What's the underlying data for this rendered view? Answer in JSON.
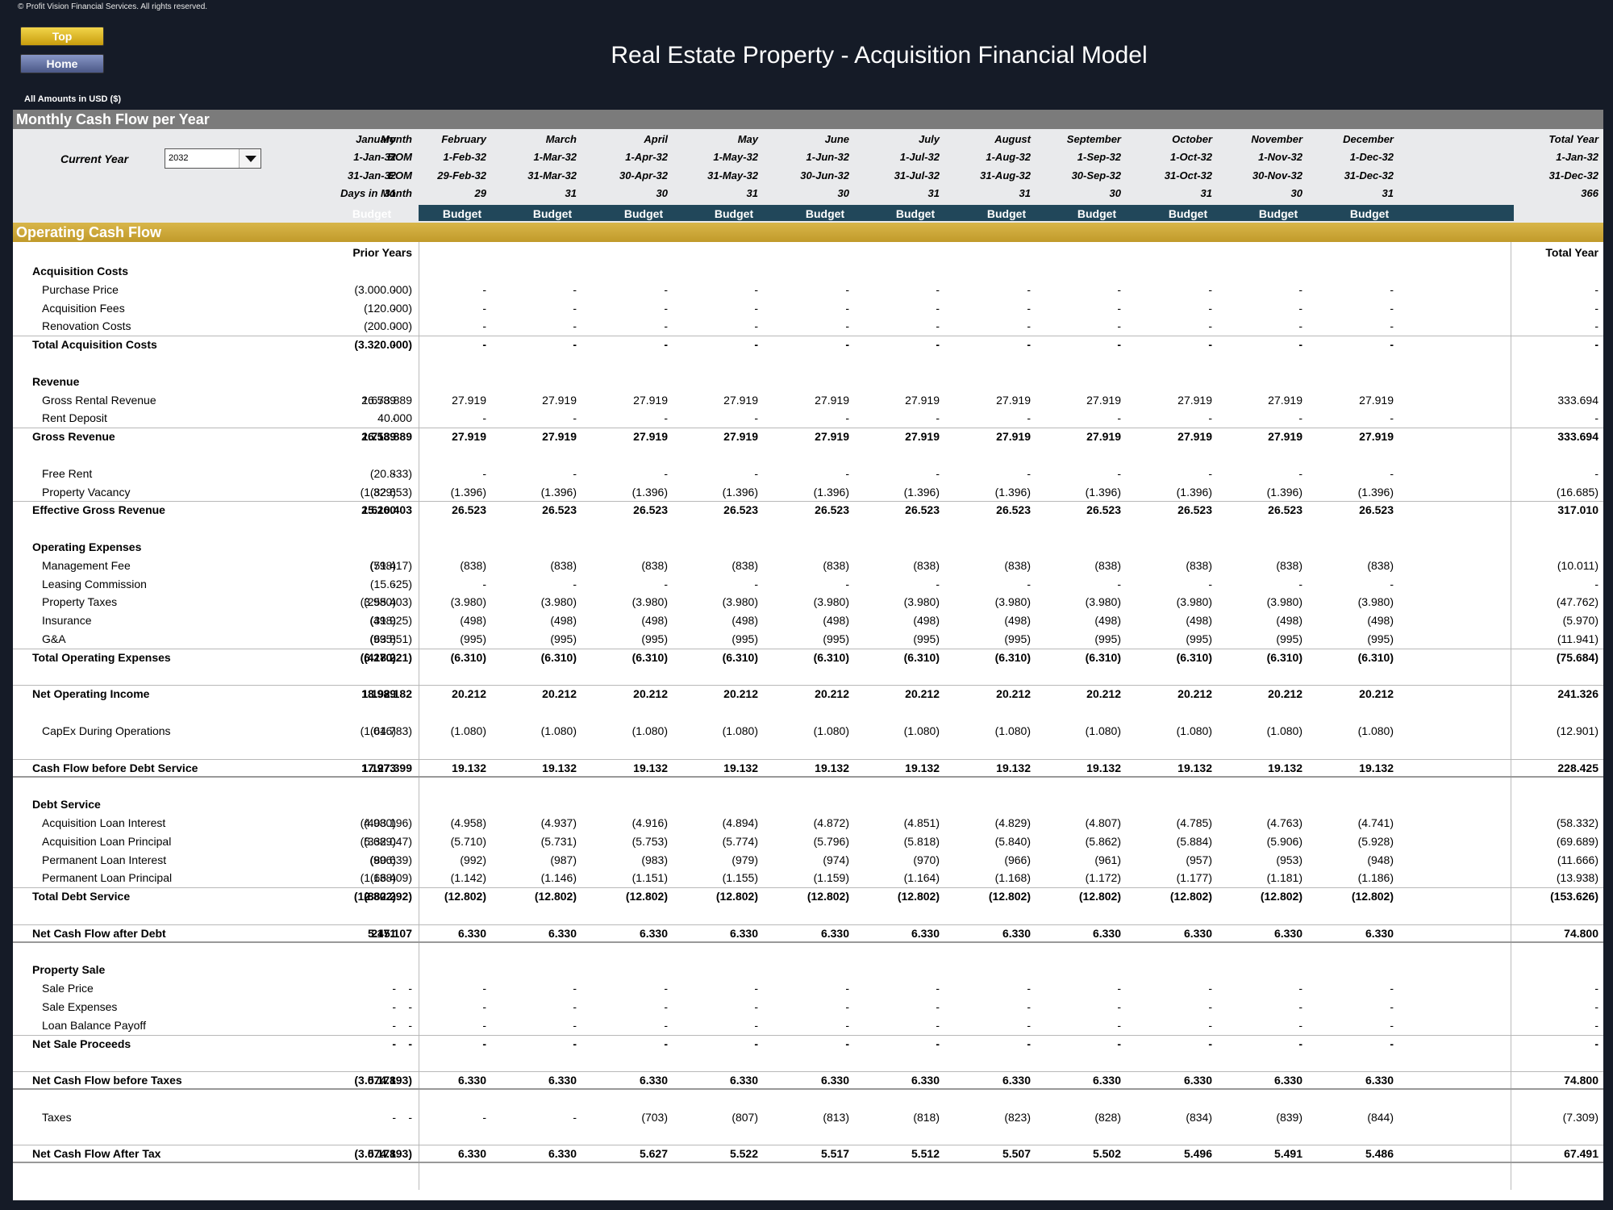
{
  "copyright": "© Profit Vision Financial Services. All rights reserved.",
  "nav": {
    "top_label": "Top",
    "home_label": "Home"
  },
  "title": "Real Estate Property - Acquisition Financial Model",
  "amounts_note": "All Amounts in  USD ($)",
  "section_title": "Monthly Cash Flow per Year",
  "current_year": {
    "label": "Current Year",
    "value": "2032"
  },
  "header_labels": {
    "month": "Month",
    "bom": "BOM",
    "eom": "EOM",
    "days": "Days in Month"
  },
  "months": [
    {
      "name": "January",
      "bom": "1-Jan-32",
      "eom": "31-Jan-32",
      "days": "31",
      "scenario": "Budget"
    },
    {
      "name": "February",
      "bom": "1-Feb-32",
      "eom": "29-Feb-32",
      "days": "29",
      "scenario": "Budget"
    },
    {
      "name": "March",
      "bom": "1-Mar-32",
      "eom": "31-Mar-32",
      "days": "31",
      "scenario": "Budget"
    },
    {
      "name": "April",
      "bom": "1-Apr-32",
      "eom": "30-Apr-32",
      "days": "30",
      "scenario": "Budget"
    },
    {
      "name": "May",
      "bom": "1-May-32",
      "eom": "31-May-32",
      "days": "31",
      "scenario": "Budget"
    },
    {
      "name": "June",
      "bom": "1-Jun-32",
      "eom": "30-Jun-32",
      "days": "30",
      "scenario": "Budget"
    },
    {
      "name": "July",
      "bom": "1-Jul-32",
      "eom": "31-Jul-32",
      "days": "31",
      "scenario": "Budget"
    },
    {
      "name": "August",
      "bom": "1-Aug-32",
      "eom": "31-Aug-32",
      "days": "31",
      "scenario": "Budget"
    },
    {
      "name": "September",
      "bom": "1-Sep-32",
      "eom": "30-Sep-32",
      "days": "30",
      "scenario": "Budget"
    },
    {
      "name": "October",
      "bom": "1-Oct-32",
      "eom": "31-Oct-32",
      "days": "31",
      "scenario": "Budget"
    },
    {
      "name": "November",
      "bom": "1-Nov-32",
      "eom": "30-Nov-32",
      "days": "30",
      "scenario": "Budget"
    },
    {
      "name": "December",
      "bom": "1-Dec-32",
      "eom": "31-Dec-32",
      "days": "31",
      "scenario": "Budget"
    }
  ],
  "total_year": {
    "name": "Total Year",
    "bom": "1-Jan-32",
    "eom": "31-Dec-32",
    "days": "366"
  },
  "ocf_title": "Operating Cash Flow",
  "col_headers": {
    "prior": "Prior Years",
    "total": "Total Year"
  },
  "rows": [
    {
      "label": "Acquisition Costs",
      "type": "section"
    },
    {
      "label": "Purchase Price",
      "type": "item",
      "prior": "(3.000.000)",
      "months": [
        "-",
        "-",
        "-",
        "-",
        "-",
        "-",
        "-",
        "-",
        "-",
        "-",
        "-",
        "-"
      ],
      "total": "-"
    },
    {
      "label": "Acquisition Fees",
      "type": "item",
      "prior": "(120.000)",
      "months": [
        "-",
        "-",
        "-",
        "-",
        "-",
        "-",
        "-",
        "-",
        "-",
        "-",
        "-",
        "-"
      ],
      "total": "-"
    },
    {
      "label": "Renovation Costs",
      "type": "item",
      "prior": "(200.000)",
      "months": [
        "-",
        "-",
        "-",
        "-",
        "-",
        "-",
        "-",
        "-",
        "-",
        "-",
        "-",
        "-"
      ],
      "total": "-"
    },
    {
      "label": "Total Acquisition Costs",
      "type": "total",
      "prior": "(3.320.000)",
      "months": [
        "-",
        "-",
        "-",
        "-",
        "-",
        "-",
        "-",
        "-",
        "-",
        "-",
        "-",
        "-"
      ],
      "total": "-"
    },
    {
      "type": "blank"
    },
    {
      "label": "Revenue",
      "type": "section"
    },
    {
      "label": "Gross Rental Revenue",
      "type": "item",
      "prior": "1.673.889",
      "months": [
        "26.589",
        "27.919",
        "27.919",
        "27.919",
        "27.919",
        "27.919",
        "27.919",
        "27.919",
        "27.919",
        "27.919",
        "27.919",
        "27.919"
      ],
      "total": "333.694"
    },
    {
      "label": "Rent Deposit",
      "type": "item",
      "prior": "40.000",
      "months": [
        "-",
        "-",
        "-",
        "-",
        "-",
        "-",
        "-",
        "-",
        "-",
        "-",
        "-",
        "-"
      ],
      "total": "-"
    },
    {
      "label": "Gross Revenue",
      "type": "total",
      "prior": "1.713.889",
      "months": [
        "26.589",
        "27.919",
        "27.919",
        "27.919",
        "27.919",
        "27.919",
        "27.919",
        "27.919",
        "27.919",
        "27.919",
        "27.919",
        "27.919"
      ],
      "total": "333.694"
    },
    {
      "type": "blank"
    },
    {
      "label": "Free Rent",
      "type": "item",
      "prior": "(20.833)",
      "months": [
        "-",
        "-",
        "-",
        "-",
        "-",
        "-",
        "-",
        "-",
        "-",
        "-",
        "-",
        "-"
      ],
      "total": "-"
    },
    {
      "label": "Property Vacancy",
      "type": "item",
      "prior": "(82.653)",
      "months": [
        "(1.329)",
        "(1.396)",
        "(1.396)",
        "(1.396)",
        "(1.396)",
        "(1.396)",
        "(1.396)",
        "(1.396)",
        "(1.396)",
        "(1.396)",
        "(1.396)",
        "(1.396)"
      ],
      "total": "(16.685)"
    },
    {
      "label": "Effective Gross Revenue",
      "type": "total",
      "prior": "1.610.403",
      "months": [
        "25.260",
        "26.523",
        "26.523",
        "26.523",
        "26.523",
        "26.523",
        "26.523",
        "26.523",
        "26.523",
        "26.523",
        "26.523",
        "26.523"
      ],
      "total": "317.010"
    },
    {
      "type": "blank"
    },
    {
      "label": "Operating Expenses",
      "type": "section"
    },
    {
      "label": "Management Fee",
      "type": "item",
      "prior": "(51.417)",
      "months": [
        "(798)",
        "(838)",
        "(838)",
        "(838)",
        "(838)",
        "(838)",
        "(838)",
        "(838)",
        "(838)",
        "(838)",
        "(838)",
        "(838)"
      ],
      "total": "(10.011)"
    },
    {
      "label": "Leasing Commission",
      "type": "item",
      "prior": "(15.625)",
      "months": [
        "-",
        "-",
        "-",
        "-",
        "-",
        "-",
        "-",
        "-",
        "-",
        "-",
        "-",
        "-"
      ],
      "total": "-"
    },
    {
      "label": "Property Taxes",
      "type": "item",
      "prior": "(255.403)",
      "months": [
        "(3.980)",
        "(3.980)",
        "(3.980)",
        "(3.980)",
        "(3.980)",
        "(3.980)",
        "(3.980)",
        "(3.980)",
        "(3.980)",
        "(3.980)",
        "(3.980)",
        "(3.980)"
      ],
      "total": "(47.762)"
    },
    {
      "label": "Insurance",
      "type": "item",
      "prior": "(31.925)",
      "months": [
        "(498)",
        "(498)",
        "(498)",
        "(498)",
        "(498)",
        "(498)",
        "(498)",
        "(498)",
        "(498)",
        "(498)",
        "(498)",
        "(498)"
      ],
      "total": "(5.970)"
    },
    {
      "label": "G&A",
      "type": "item",
      "prior": "(63.851)",
      "months": [
        "(995)",
        "(995)",
        "(995)",
        "(995)",
        "(995)",
        "(995)",
        "(995)",
        "(995)",
        "(995)",
        "(995)",
        "(995)",
        "(995)"
      ],
      "total": "(11.941)"
    },
    {
      "label": "Total Operating Expenses",
      "type": "total",
      "prior": "(418.221)",
      "months": [
        "(6.270)",
        "(6.310)",
        "(6.310)",
        "(6.310)",
        "(6.310)",
        "(6.310)",
        "(6.310)",
        "(6.310)",
        "(6.310)",
        "(6.310)",
        "(6.310)",
        "(6.310)"
      ],
      "total": "(75.684)"
    },
    {
      "type": "blank"
    },
    {
      "label": "Net Operating Income",
      "type": "total",
      "prior": "1.192.182",
      "months": [
        "18.989",
        "20.212",
        "20.212",
        "20.212",
        "20.212",
        "20.212",
        "20.212",
        "20.212",
        "20.212",
        "20.212",
        "20.212",
        "20.212"
      ],
      "total": "241.326"
    },
    {
      "type": "blank"
    },
    {
      "label": "CapEx During Operations",
      "type": "item",
      "prior": "(64.783)",
      "months": [
        "(1.016)",
        "(1.080)",
        "(1.080)",
        "(1.080)",
        "(1.080)",
        "(1.080)",
        "(1.080)",
        "(1.080)",
        "(1.080)",
        "(1.080)",
        "(1.080)",
        "(1.080)"
      ],
      "total": "(12.901)"
    },
    {
      "type": "blank"
    },
    {
      "label": "Cash Flow before Debt Service",
      "type": "grand",
      "prior": "1.127.399",
      "months": [
        "17.973",
        "19.132",
        "19.132",
        "19.132",
        "19.132",
        "19.132",
        "19.132",
        "19.132",
        "19.132",
        "19.132",
        "19.132",
        "19.132"
      ],
      "total": "228.425"
    },
    {
      "type": "blank"
    },
    {
      "label": "Debt Service",
      "type": "section"
    },
    {
      "label": "Acquisition Loan Interest",
      "type": "item",
      "prior": "(403.196)",
      "months": [
        "(4.980)",
        "(4.958)",
        "(4.937)",
        "(4.916)",
        "(4.894)",
        "(4.872)",
        "(4.851)",
        "(4.829)",
        "(4.807)",
        "(4.785)",
        "(4.763)",
        "(4.741)"
      ],
      "total": "(58.332)"
    },
    {
      "label": "Acquisition Loan Principal",
      "type": "item",
      "prior": "(332.047)",
      "months": [
        "(5.689)",
        "(5.710)",
        "(5.731)",
        "(5.753)",
        "(5.774)",
        "(5.796)",
        "(5.818)",
        "(5.840)",
        "(5.862)",
        "(5.884)",
        "(5.906)",
        "(5.928)"
      ],
      "total": "(69.689)"
    },
    {
      "label": "Permanent Loan Interest",
      "type": "item",
      "prior": "(80.639)",
      "months": [
        "(996)",
        "(992)",
        "(987)",
        "(983)",
        "(979)",
        "(974)",
        "(970)",
        "(966)",
        "(961)",
        "(957)",
        "(953)",
        "(948)"
      ],
      "total": "(11.666)"
    },
    {
      "label": "Permanent Loan Principal",
      "type": "item",
      "prior": "(66.409)",
      "months": [
        "(1.138)",
        "(1.142)",
        "(1.146)",
        "(1.151)",
        "(1.155)",
        "(1.159)",
        "(1.164)",
        "(1.168)",
        "(1.172)",
        "(1.177)",
        "(1.181)",
        "(1.186)"
      ],
      "total": "(13.938)"
    },
    {
      "label": "Total Debt Service",
      "type": "total",
      "prior": "(882.292)",
      "months": [
        "(12.802)",
        "(12.802)",
        "(12.802)",
        "(12.802)",
        "(12.802)",
        "(12.802)",
        "(12.802)",
        "(12.802)",
        "(12.802)",
        "(12.802)",
        "(12.802)",
        "(12.802)"
      ],
      "total": "(153.626)"
    },
    {
      "type": "blank"
    },
    {
      "label": "Net Cash Flow after Debt",
      "type": "grand",
      "prior": "245.107",
      "months": [
        "5.171",
        "6.330",
        "6.330",
        "6.330",
        "6.330",
        "6.330",
        "6.330",
        "6.330",
        "6.330",
        "6.330",
        "6.330",
        "6.330"
      ],
      "total": "74.800"
    },
    {
      "type": "blank"
    },
    {
      "label": "Property Sale",
      "type": "section"
    },
    {
      "label": "Sale Price",
      "type": "item",
      "prior": "-",
      "months": [
        "-",
        "-",
        "-",
        "-",
        "-",
        "-",
        "-",
        "-",
        "-",
        "-",
        "-",
        "-"
      ],
      "total": "-"
    },
    {
      "label": "Sale Expenses",
      "type": "item",
      "prior": "-",
      "months": [
        "-",
        "-",
        "-",
        "-",
        "-",
        "-",
        "-",
        "-",
        "-",
        "-",
        "-",
        "-"
      ],
      "total": "-"
    },
    {
      "label": "Loan Balance Payoff",
      "type": "item",
      "prior": "-",
      "months": [
        "-",
        "-",
        "-",
        "-",
        "-",
        "-",
        "-",
        "-",
        "-",
        "-",
        "-",
        "-"
      ],
      "total": "-"
    },
    {
      "label": "Net Sale Proceeds",
      "type": "total",
      "prior": "-",
      "months": [
        "-",
        "-",
        "-",
        "-",
        "-",
        "-",
        "-",
        "-",
        "-",
        "-",
        "-",
        "-"
      ],
      "total": "-"
    },
    {
      "type": "blank"
    },
    {
      "label": "Net Cash Flow before Taxes",
      "type": "grand",
      "prior": "(3.074.893)",
      "months": [
        "5.171",
        "6.330",
        "6.330",
        "6.330",
        "6.330",
        "6.330",
        "6.330",
        "6.330",
        "6.330",
        "6.330",
        "6.330",
        "6.330"
      ],
      "total": "74.800"
    },
    {
      "type": "blank"
    },
    {
      "label": "Taxes",
      "type": "item",
      "prior": "-",
      "months": [
        "-",
        "-",
        "-",
        "(703)",
        "(807)",
        "(813)",
        "(818)",
        "(823)",
        "(828)",
        "(834)",
        "(839)",
        "(844)"
      ],
      "total": "(7.309)"
    },
    {
      "type": "blank"
    },
    {
      "label": "Net Cash Flow After Tax",
      "type": "grand",
      "prior": "(3.074.893)",
      "months": [
        "5.171",
        "6.330",
        "6.330",
        "5.627",
        "5.522",
        "5.517",
        "5.512",
        "5.507",
        "5.502",
        "5.496",
        "5.491",
        "5.486"
      ],
      "total": "67.491"
    }
  ]
}
